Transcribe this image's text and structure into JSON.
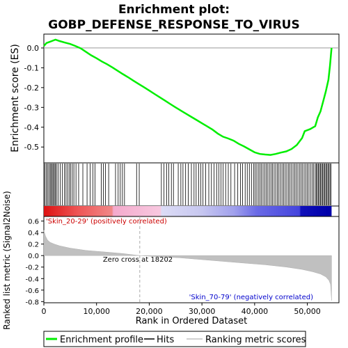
{
  "chart_data": {
    "type": "line",
    "title_lines": [
      "Enrichment plot:",
      "GOBP_DEFENSE_RESPONSE_TO_VIRUS"
    ],
    "es_panel": {
      "ylabel": "Enrichment score (ES)",
      "ylim": [
        -0.58,
        0.07
      ],
      "yticks": [
        0.0,
        -0.1,
        -0.2,
        -0.3,
        -0.4,
        -0.5
      ],
      "ytick_labels": [
        "0.0",
        "-0.1",
        "-0.2",
        "-0.3",
        "-0.4",
        "-0.5"
      ],
      "series_name": "Enrichment profile",
      "color": "#00ee00",
      "points": [
        [
          0,
          0.01
        ],
        [
          500,
          0.025
        ],
        [
          1000,
          0.03
        ],
        [
          1500,
          0.035
        ],
        [
          2200,
          0.042
        ],
        [
          3000,
          0.035
        ],
        [
          4000,
          0.027
        ],
        [
          5000,
          0.02
        ],
        [
          6000,
          0.01
        ],
        [
          7000,
          -0.002
        ],
        [
          8000,
          -0.02
        ],
        [
          9000,
          -0.037
        ],
        [
          10000,
          -0.052
        ],
        [
          11000,
          -0.068
        ],
        [
          12000,
          -0.082
        ],
        [
          13000,
          -0.098
        ],
        [
          14000,
          -0.115
        ],
        [
          15000,
          -0.132
        ],
        [
          16000,
          -0.148
        ],
        [
          17000,
          -0.165
        ],
        [
          18000,
          -0.182
        ],
        [
          19000,
          -0.198
        ],
        [
          20000,
          -0.215
        ],
        [
          21000,
          -0.232
        ],
        [
          22000,
          -0.249
        ],
        [
          23000,
          -0.266
        ],
        [
          24000,
          -0.283
        ],
        [
          25000,
          -0.3
        ],
        [
          26000,
          -0.316
        ],
        [
          27000,
          -0.332
        ],
        [
          28000,
          -0.348
        ],
        [
          29000,
          -0.364
        ],
        [
          30000,
          -0.38
        ],
        [
          31000,
          -0.396
        ],
        [
          32000,
          -0.412
        ],
        [
          33000,
          -0.432
        ],
        [
          34000,
          -0.448
        ],
        [
          35000,
          -0.457
        ],
        [
          36000,
          -0.468
        ],
        [
          37000,
          -0.484
        ],
        [
          38000,
          -0.497
        ],
        [
          39000,
          -0.512
        ],
        [
          40000,
          -0.527
        ],
        [
          41000,
          -0.535
        ],
        [
          42000,
          -0.538
        ],
        [
          43000,
          -0.54
        ],
        [
          44000,
          -0.535
        ],
        [
          45000,
          -0.528
        ],
        [
          46000,
          -0.522
        ],
        [
          47000,
          -0.51
        ],
        [
          48000,
          -0.49
        ],
        [
          49000,
          -0.455
        ],
        [
          49500,
          -0.42
        ],
        [
          50500,
          -0.41
        ],
        [
          51500,
          -0.395
        ],
        [
          52000,
          -0.35
        ],
        [
          52500,
          -0.32
        ],
        [
          53000,
          -0.27
        ],
        [
          53500,
          -0.22
        ],
        [
          54000,
          -0.16
        ],
        [
          54300,
          -0.09
        ],
        [
          54500,
          -0.03
        ],
        [
          54600,
          0.0
        ]
      ]
    },
    "hits_panel": {
      "hit_ranks": [
        200,
        450,
        700,
        950,
        1200,
        1400,
        1600,
        1800,
        2000,
        2200,
        2400,
        2700,
        3100,
        3500,
        3900,
        4200,
        4500,
        4800,
        5100,
        5400,
        5700,
        6100,
        6600,
        7400,
        8200,
        8800,
        9300,
        9700,
        10900,
        11300,
        11700,
        12300,
        13600,
        14100,
        14500,
        14900,
        15300,
        17600,
        18100,
        22300,
        22800,
        23300,
        23700,
        24200,
        24600,
        25500,
        26000,
        26400,
        26900,
        27400,
        28000,
        28500,
        28900,
        29400,
        29800,
        30200,
        30700,
        31300,
        31800,
        32300,
        32800,
        33200,
        33600,
        34000,
        34500,
        35000,
        35500,
        36200,
        36800,
        37300,
        37700,
        38200,
        38600,
        39000,
        39400,
        39800,
        40100,
        40400,
        40700,
        41000,
        41300,
        41600,
        41900,
        42200,
        42500,
        42800,
        43100,
        43400,
        43700,
        44000,
        44300,
        44600,
        44900,
        45200,
        45500,
        45800,
        46100,
        46400,
        46700,
        47000,
        47300,
        47600,
        47900,
        48200,
        48500,
        48800,
        49100,
        49400,
        49700,
        50000,
        50300,
        50600,
        50900,
        51200,
        51500,
        51700,
        51900,
        52100,
        52300,
        52500,
        52700,
        52900,
        53100,
        53300,
        53500,
        53700,
        53900,
        54100,
        54300,
        54500
      ]
    },
    "metric_panel": {
      "ylabel": "Ranked list metric (Signal2Noise)",
      "ylim": [
        -0.82,
        0.68
      ],
      "yticks": [
        0.6,
        0.4,
        0.2,
        0.0,
        -0.2,
        -0.4,
        -0.6,
        -0.8
      ],
      "ytick_labels": [
        "0.6",
        "0.4",
        "0.2",
        "0.0",
        "-0.2",
        "-0.4",
        "-0.6",
        "-0.8"
      ],
      "series_name": "Ranking metric scores",
      "points": [
        [
          0,
          0.44
        ],
        [
          300,
          0.34
        ],
        [
          700,
          0.27
        ],
        [
          1200,
          0.23
        ],
        [
          2000,
          0.2
        ],
        [
          3000,
          0.17
        ],
        [
          5000,
          0.13
        ],
        [
          8000,
          0.09
        ],
        [
          12000,
          0.06
        ],
        [
          15000,
          0.035
        ],
        [
          18202,
          0.0
        ],
        [
          22000,
          -0.02
        ],
        [
          26000,
          -0.04
        ],
        [
          30000,
          -0.07
        ],
        [
          34000,
          -0.1
        ],
        [
          38000,
          -0.13
        ],
        [
          42000,
          -0.16
        ],
        [
          46000,
          -0.2
        ],
        [
          49000,
          -0.24
        ],
        [
          51000,
          -0.28
        ],
        [
          52500,
          -0.32
        ],
        [
          53500,
          -0.37
        ],
        [
          54100,
          -0.43
        ],
        [
          54400,
          -0.5
        ],
        [
          54600,
          -0.78
        ]
      ],
      "zero_cross_rank": 18202,
      "zero_cross_label": "Zero cross at 18202",
      "pos_label": "'Skin_20-29' (positively correlated)",
      "neg_label": "'Skin_70-79' (negatively correlated)"
    },
    "x_axis": {
      "label": "Rank in Ordered Dataset",
      "xlim": [
        0,
        56000
      ],
      "max_rank": 54600,
      "ticks": [
        0,
        10000,
        20000,
        30000,
        40000,
        50000
      ],
      "tick_labels": [
        "0",
        "10,000",
        "20,000",
        "30,000",
        "40,000",
        "50,000"
      ]
    },
    "legend": {
      "placement": "bottom",
      "items": [
        {
          "label": "Enrichment profile",
          "color": "#00ee00"
        },
        {
          "label": "Hits",
          "color": "#000000"
        },
        {
          "label": "Ranking metric scores",
          "color": "#c0c0c0"
        }
      ]
    }
  }
}
